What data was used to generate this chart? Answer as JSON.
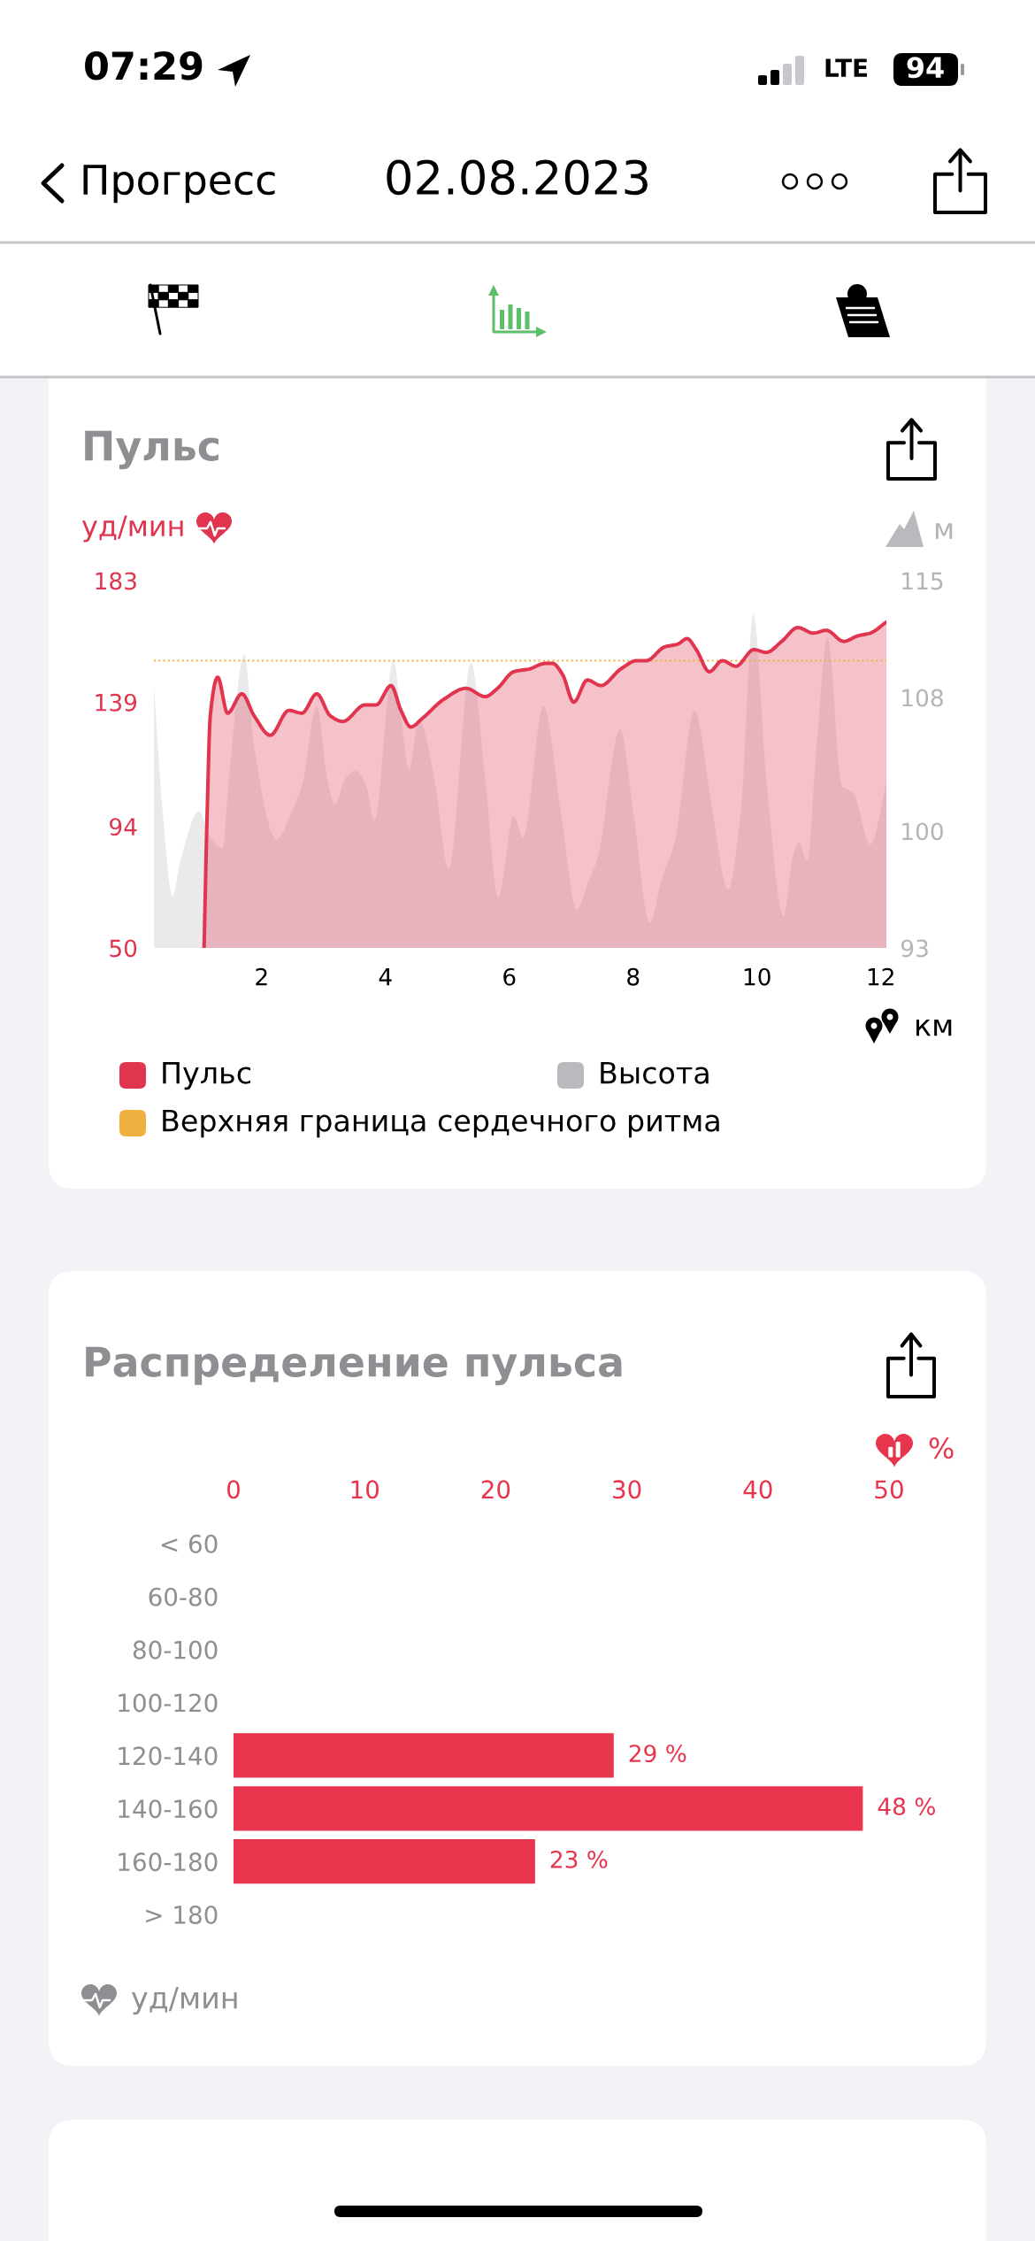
{
  "chart_data": [
    {
      "type": "other",
      "annotations": [
        "07:29",
        "LTE",
        "94",
        "Прогресс",
        "02.08.2023"
      ]
    },
    {
      "type": "area",
      "title": "Пульс",
      "ylabel": "уд/мин",
      "y2label": "м",
      "xlabel": "км",
      "xlim": [
        0.26,
        12.09
      ],
      "xticks": [
        2,
        4,
        6,
        8,
        10,
        12
      ],
      "ylim": [
        50,
        183
      ],
      "yticks": [
        50,
        94,
        139,
        183
      ],
      "y2lim": [
        93,
        115
      ],
      "y2ticks": [
        93,
        100,
        108,
        115
      ],
      "series": [
        {
          "name": "Пульс",
          "type": "area",
          "color": "#e0344f",
          "line_style": "solid",
          "x": [
            1.07,
            1.12,
            1.17,
            1.29,
            1.45,
            1.68,
            1.88,
            2.14,
            2.44,
            2.65,
            2.89,
            3.11,
            3.31,
            3.67,
            3.85,
            4.09,
            4.25,
            4.41,
            4.59,
            4.94,
            5.3,
            5.61,
            5.81,
            6.07,
            6.32,
            6.58,
            6.7,
            6.86,
            7.04,
            7.26,
            7.48,
            7.8,
            8.06,
            8.21,
            8.51,
            8.72,
            8.87,
            9.02,
            9.23,
            9.44,
            9.66,
            9.95,
            10.15,
            10.4,
            10.66,
            10.91,
            11.12,
            11.4,
            11.63,
            11.83,
            12.09
          ],
          "values": [
            50,
            99,
            134,
            148,
            135,
            142,
            134,
            127,
            136,
            135,
            142,
            134,
            132,
            138,
            138,
            145,
            136,
            130,
            133,
            140,
            144,
            141,
            144,
            150,
            151,
            153,
            153,
            149,
            139,
            147,
            145,
            151,
            154,
            154,
            159,
            160,
            162,
            158,
            150,
            154,
            152,
            158,
            157,
            161,
            166,
            164,
            165,
            161,
            163,
            164,
            168
          ]
        },
        {
          "name": "Высота",
          "type": "area",
          "axis": "y2",
          "color": "#b8babd",
          "x": [
            0.26,
            0.4,
            0.56,
            0.68,
            0.99,
            1.17,
            1.37,
            1.47,
            1.72,
            1.88,
            2.24,
            2.49,
            2.65,
            2.89,
            3.06,
            3.18,
            3.36,
            3.52,
            3.69,
            3.82,
            4.13,
            4.25,
            4.38,
            4.54,
            4.79,
            5.02,
            5.38,
            5.61,
            5.82,
            6.07,
            6.22,
            6.55,
            6.83,
            7.09,
            7.29,
            7.42,
            7.79,
            8.0,
            8.27,
            8.46,
            8.67,
            8.99,
            9.28,
            9.53,
            9.74,
            9.94,
            10.15,
            10.43,
            10.58,
            10.68,
            10.81,
            10.96,
            11.14,
            11.37,
            11.55,
            11.83,
            12.09
          ],
          "values": [
            108.7,
            101.2,
            96.1,
            98.1,
            101.2,
            99.6,
            99.0,
            103.1,
            110.6,
            105.0,
            99.5,
            101.2,
            102.7,
            107.5,
            103.1,
            101.6,
            103.2,
            103.6,
            102.7,
            100.6,
            110.3,
            106.9,
            103.7,
            106.7,
            103.1,
            97.7,
            110.1,
            103.1,
            96.0,
            100.9,
            99.6,
            107.5,
            101.2,
            95.3,
            97.1,
            98.3,
            106.1,
            101.2,
            94.5,
            97.1,
            99.3,
            107.2,
            101.2,
            96.5,
            101.2,
            113.0,
            103.1,
            94.9,
            98.5,
            99.3,
            98.2,
            105.0,
            111.6,
            102.7,
            102.3,
            99.2,
            102.9
          ]
        }
      ],
      "ref_lines": [
        {
          "axis": "y",
          "value": 154,
          "label": "Верхняя граница сердечного ритма",
          "color": "#f0b040",
          "line_style": "dotted"
        }
      ],
      "legend": "bottom"
    },
    {
      "type": "bar",
      "orientation": "horizontal",
      "title": "Распределение пульса",
      "xlabel": "%",
      "ylabel": "уд/мин",
      "categories": [
        "< 60",
        "60-80",
        "80-100",
        "100-120",
        "120-140",
        "140-160",
        "160-180",
        "> 180"
      ],
      "values": [
        0,
        0,
        0,
        0,
        29,
        48,
        23,
        0
      ],
      "value_labels": [
        null,
        null,
        null,
        null,
        "29 %",
        "48 %",
        "23 %",
        null
      ],
      "color": "#e8344c",
      "xlim": [
        0,
        50
      ],
      "xticks": [
        0,
        10,
        20,
        30,
        40,
        50
      ]
    }
  ]
}
